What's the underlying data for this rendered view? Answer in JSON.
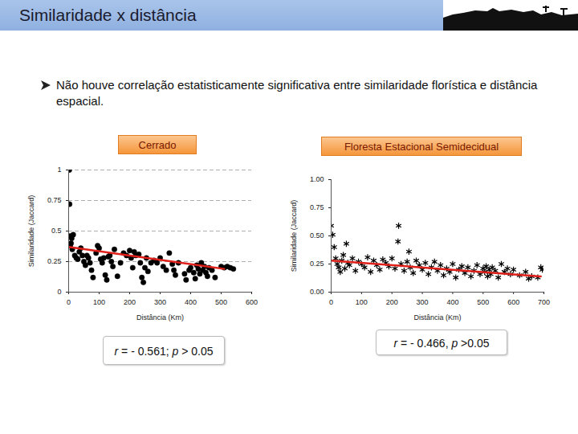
{
  "slide_title": "Similaridade x distância",
  "bullet_text": "Não houve correlação estatisticamente significativa entre similaridade florística e distância espacial.",
  "chart_data": [
    {
      "type": "scatter",
      "title": "Cerrado",
      "xlabel": "Distância (Km)",
      "ylabel": "Similaridade (Jaccard)",
      "xlim": [
        0,
        600
      ],
      "xticks": [
        0,
        100,
        200,
        300,
        400,
        500,
        600
      ],
      "ylim": [
        0,
        1
      ],
      "yticks": [
        0,
        0.25,
        0.5,
        0.75,
        1
      ],
      "grid": true,
      "annotation": "r = - 0.561; p > 0.05",
      "series": [
        {
          "type": "scatter",
          "marker": "circle",
          "color": "#000000",
          "x": [
            2,
            3,
            5,
            15,
            10,
            8,
            5,
            12,
            20,
            25,
            30,
            35,
            40,
            45,
            50,
            55,
            60,
            65,
            70,
            75,
            80,
            90,
            95,
            100,
            105,
            110,
            115,
            120,
            125,
            130,
            135,
            140,
            145,
            150,
            160,
            170,
            180,
            190,
            200,
            205,
            210,
            215,
            220,
            230,
            235,
            240,
            245,
            250,
            255,
            260,
            270,
            280,
            290,
            300,
            310,
            320,
            330,
            340,
            345,
            350,
            360,
            380,
            385,
            395,
            400,
            410,
            415,
            420,
            425,
            430,
            435,
            440,
            445,
            450,
            455,
            460,
            470,
            480,
            500,
            510,
            520,
            530,
            540
          ],
          "values": [
            1.0,
            0.72,
            0.46,
            0.47,
            0.44,
            0.4,
            0.38,
            0.35,
            0.3,
            0.28,
            0.27,
            0.33,
            0.36,
            0.3,
            0.25,
            0.22,
            0.3,
            0.28,
            0.24,
            0.18,
            0.12,
            0.32,
            0.38,
            0.36,
            0.27,
            0.24,
            0.28,
            0.14,
            0.1,
            0.29,
            0.3,
            0.25,
            0.21,
            0.35,
            0.13,
            0.24,
            0.32,
            0.3,
            0.34,
            0.28,
            0.2,
            0.33,
            0.3,
            0.31,
            0.24,
            0.12,
            0.08,
            0.2,
            0.28,
            0.17,
            0.24,
            0.26,
            0.24,
            0.28,
            0.21,
            0.18,
            0.32,
            0.23,
            0.18,
            0.14,
            0.24,
            0.15,
            0.1,
            0.18,
            0.2,
            0.16,
            0.11,
            0.22,
            0.19,
            0.15,
            0.24,
            0.18,
            0.21,
            0.16,
            0.13,
            0.2,
            0.18,
            0.12,
            0.21,
            0.2,
            0.21,
            0.2,
            0.19
          ]
        },
        {
          "type": "line",
          "line_style": "solid",
          "color": "#e0201b",
          "x": [
            0,
            510
          ],
          "values": [
            0.37,
            0.19
          ]
        }
      ]
    },
    {
      "type": "scatter",
      "title": "Floresta Estacional Semidecidual",
      "xlabel": "Distância (Km)",
      "ylabel": "Similaridade (Jaccard)",
      "xlim": [
        0,
        700
      ],
      "xticks": [
        0,
        100,
        200,
        300,
        400,
        500,
        600,
        700
      ],
      "ylim": [
        0,
        1
      ],
      "yticks": [
        {
          "value": 0,
          "label": "0.00"
        },
        {
          "value": 0.25,
          "label": "0.25"
        },
        {
          "value": 0.5,
          "label": "0.50"
        },
        {
          "value": 0.75,
          "label": "0.75"
        },
        {
          "value": 1,
          "label": "1.00"
        }
      ],
      "grid": false,
      "annotation": "r = - 0.466, p >0.05",
      "series": [
        {
          "type": "scatter",
          "marker": "asterisk",
          "color": "#000000",
          "x": [
            0,
            5,
            10,
            15,
            20,
            25,
            30,
            35,
            40,
            45,
            50,
            55,
            60,
            70,
            80,
            90,
            100,
            110,
            120,
            130,
            140,
            150,
            160,
            170,
            180,
            190,
            200,
            210,
            220,
            222,
            230,
            240,
            250,
            256,
            260,
            270,
            280,
            290,
            300,
            310,
            320,
            330,
            340,
            350,
            360,
            370,
            380,
            390,
            400,
            410,
            420,
            430,
            440,
            450,
            460,
            470,
            480,
            490,
            500,
            505,
            510,
            515,
            520,
            525,
            530,
            540,
            550,
            560,
            570,
            580,
            590,
            600,
            620,
            640,
            650,
            660,
            680,
            690,
            695
          ],
          "values": [
            0.59,
            0.51,
            0.4,
            0.3,
            0.25,
            0.22,
            0.18,
            0.28,
            0.33,
            0.21,
            0.43,
            0.26,
            0.24,
            0.3,
            0.19,
            0.27,
            0.25,
            0.22,
            0.31,
            0.18,
            0.28,
            0.24,
            0.2,
            0.29,
            0.26,
            0.23,
            0.3,
            0.21,
            0.45,
            0.59,
            0.25,
            0.19,
            0.27,
            0.36,
            0.22,
            0.17,
            0.28,
            0.24,
            0.2,
            0.26,
            0.16,
            0.22,
            0.27,
            0.19,
            0.24,
            0.15,
            0.21,
            0.18,
            0.25,
            0.13,
            0.2,
            0.23,
            0.17,
            0.22,
            0.14,
            0.19,
            0.24,
            0.16,
            0.21,
            0.18,
            0.23,
            0.14,
            0.2,
            0.16,
            0.22,
            0.19,
            0.13,
            0.25,
            0.18,
            0.21,
            0.16,
            0.2,
            0.15,
            0.18,
            0.12,
            0.14,
            0.13,
            0.22,
            0.2
          ]
        },
        {
          "type": "line",
          "line_style": "solid",
          "color": "#e0201b",
          "x": [
            0,
            690
          ],
          "values": [
            0.28,
            0.14
          ]
        }
      ]
    }
  ]
}
